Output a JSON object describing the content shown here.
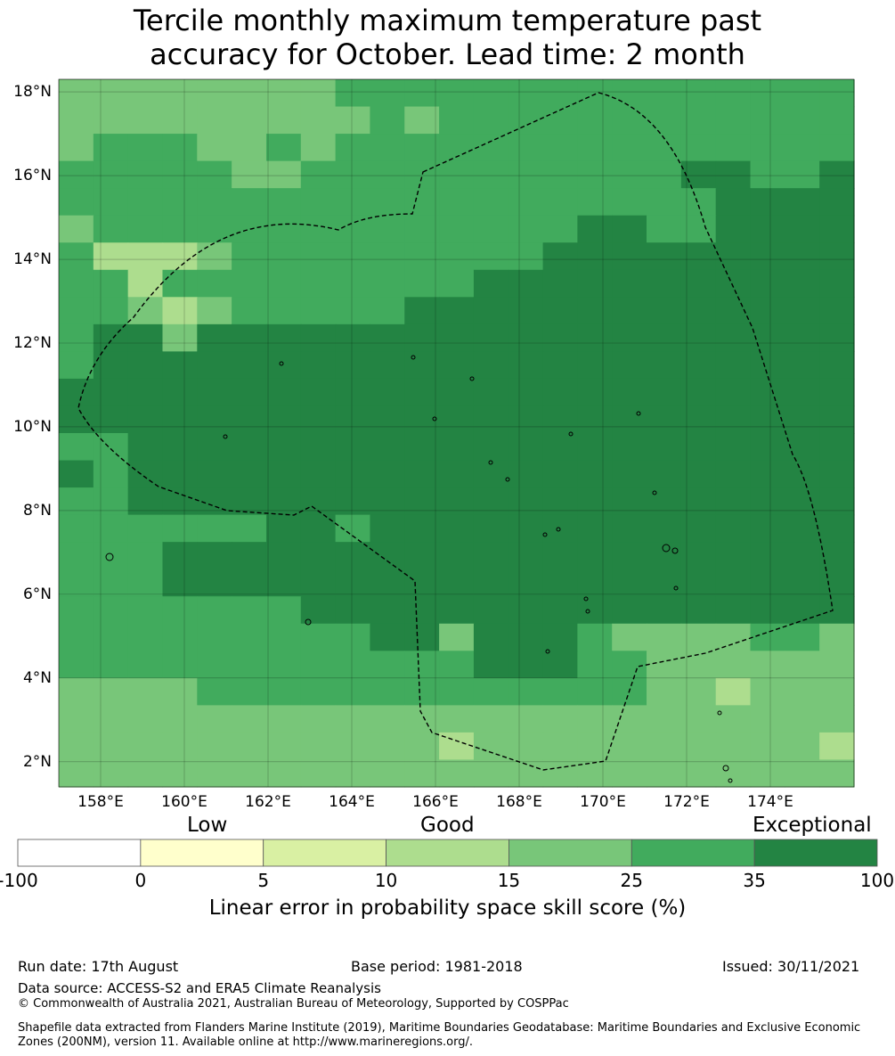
{
  "title": {
    "line1": "Tercile monthly maximum temperature past",
    "line2": "accuracy for October. Lead time: 2 month"
  },
  "map": {
    "lat_labels": [
      "18°N",
      "16°N",
      "14°N",
      "12°N",
      "10°N",
      "8°N",
      "6°N",
      "4°N",
      "2°N"
    ],
    "lon_labels": [
      "158°E",
      "160°E",
      "162°E",
      "164°E",
      "166°E",
      "168°E",
      "170°E",
      "172°E",
      "174°E"
    ],
    "lat_values": [
      18,
      16,
      14,
      12,
      10,
      8,
      6,
      4,
      2
    ],
    "lon_values": [
      158,
      160,
      162,
      164,
      166,
      168,
      170,
      172,
      174
    ],
    "lat_range": [
      1.4,
      18.3
    ],
    "lon_range": [
      157.0,
      176.0
    ],
    "cell_size_deg": 0.83,
    "region_boundary": "Marshall Islands EEZ (dashed)"
  },
  "colorbar": {
    "categories": [
      "Low",
      "Good",
      "Exceptional"
    ],
    "ticks": [
      "-100",
      "0",
      "5",
      "10",
      "15",
      "25",
      "35",
      "100"
    ],
    "colors": [
      "#ffffff",
      "#ffffcc",
      "#d9f0a3",
      "#addd8e",
      "#78c679",
      "#41ab5d",
      "#238443"
    ],
    "caption": "Linear error in probability space skill score (%)"
  },
  "footer": {
    "run_date": "Run date: 17th August",
    "base_period": "Base period: 1981-2018",
    "issued": "Issued: 30/11/2021",
    "data_source": "Data source: ACCESS-S2 and ERA5 Climate Reanalysis",
    "copyright": "© Commonwealth of Australia 2021, Australian Bureau of Meteorology, Supported by COSPPac",
    "shapefile": "Shapefile data extracted from Flanders Marine Institute (2019), Maritime Boundaries Geodatabase: Maritime Boundaries and Exclusive Economic Zones (200NM), version 11. Available online at http://www.marineregions.org/."
  }
}
